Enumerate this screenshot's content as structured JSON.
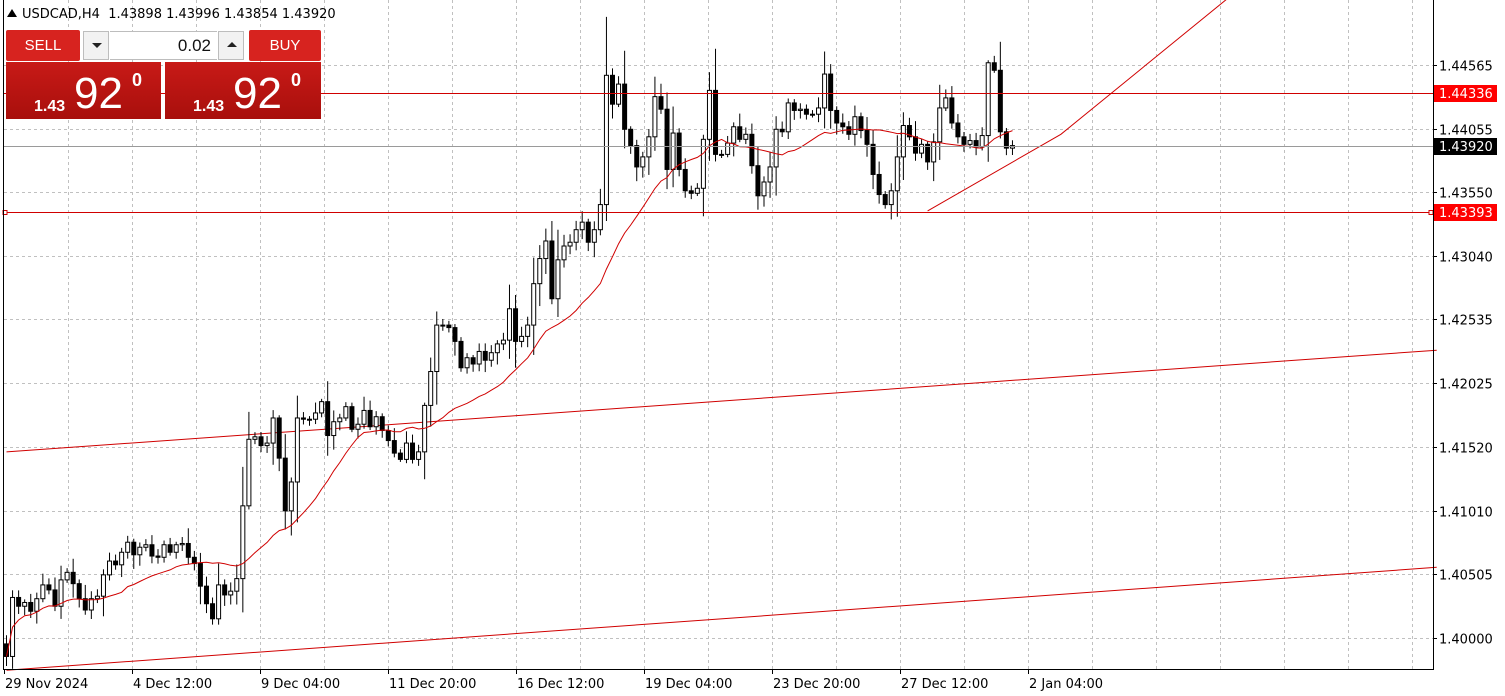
{
  "chart": {
    "title": "USDCAD,H4  1.43898 1.43996 1.43854 1.43920",
    "symbol": "USDCAD",
    "timeframe": "H4",
    "ohlc": {
      "open": 1.43898,
      "high": 1.43996,
      "low": 1.43854,
      "close": 1.4392
    },
    "background_color": "#ffffff",
    "grid_color": "#c0c0c0",
    "bull_candle_color": "#ffffff",
    "bear_candle_color": "#000000",
    "ma_color": "#d00000",
    "line_color": "#d00000",
    "current_price_label": "1.43920",
    "hline_labels": [
      "1.44336",
      "1.43393"
    ],
    "hline_label_color": "#ff0000",
    "price_axis_labels": [
      "1.44565",
      "1.44055",
      "1.43550",
      "1.43040",
      "1.42535",
      "1.42025",
      "1.41520",
      "1.41010",
      "1.40505",
      "1.40000"
    ],
    "time_axis_labels": [
      "29 Nov 2024",
      "4 Dec 12:00",
      "9 Dec 04:00",
      "11 Dec 20:00",
      "16 Dec 12:00",
      "19 Dec 04:00",
      "23 Dec 20:00",
      "27 Dec 12:00",
      "2 Jan 04:00"
    ]
  },
  "trade_panel": {
    "sell_label": "SELL",
    "buy_label": "BUY",
    "volume": "0.02",
    "sell_price_big": "1.43",
    "sell_price_pips": "92",
    "sell_price_point": "0",
    "buy_price_big": "1.43",
    "buy_price_pips": "92",
    "buy_price_point": "0",
    "color": "#d7231f"
  },
  "chart_data": {
    "type": "candlestick",
    "title": "USDCAD,H4  1.43898 1.43996 1.43854 1.43920",
    "ylim": [
      1.3975,
      1.4508
    ],
    "y_ticks": [
      1.44565,
      1.44055,
      1.4355,
      1.4304,
      1.42535,
      1.42025,
      1.4152,
      1.4101,
      1.40505,
      1.4
    ],
    "x_tick_labels": [
      "29 Nov 2024",
      "4 Dec 12:00",
      "9 Dec 04:00",
      "11 Dec 20:00",
      "16 Dec 12:00",
      "19 Dec 04:00",
      "23 Dec 20:00",
      "27 Dec 12:00",
      "2 Jan 04:00"
    ],
    "horizontal_lines": [
      1.44336,
      1.4392,
      1.43393
    ],
    "closes": [
      1.3985,
      1.4032,
      1.4025,
      1.4028,
      1.4021,
      1.4031,
      1.4042,
      1.4038,
      1.4025,
      1.4046,
      1.4052,
      1.4043,
      1.4031,
      1.4022,
      1.4031,
      1.4033,
      1.405,
      1.4061,
      1.4058,
      1.4068,
      1.4076,
      1.4066,
      1.4072,
      1.4074,
      1.4065,
      1.4064,
      1.4074,
      1.4068,
      1.4074,
      1.4075,
      1.4064,
      1.4059,
      1.4041,
      1.4027,
      1.4015,
      1.4042,
      1.4034,
      1.4037,
      1.4047,
      1.4105,
      1.4158,
      1.416,
      1.4153,
      1.4155,
      1.4175,
      1.4143,
      1.4101,
      1.4124,
      1.4175,
      1.4174,
      1.4174,
      1.4179,
      1.4188,
      1.4161,
      1.4172,
      1.4175,
      1.4184,
      1.4166,
      1.417,
      1.4181,
      1.4168,
      1.4176,
      1.4165,
      1.4157,
      1.4147,
      1.4142,
      1.4155,
      1.4142,
      1.4148,
      1.4185,
      1.4212,
      1.4249,
      1.4249,
      1.4247,
      1.4236,
      1.4215,
      1.4223,
      1.4218,
      1.4228,
      1.4221,
      1.4227,
      1.4234,
      1.4237,
      1.4262,
      1.4236,
      1.424,
      1.4249,
      1.4282,
      1.4302,
      1.4316,
      1.427,
      1.4301,
      1.4312,
      1.4315,
      1.4325,
      1.4331,
      1.4315,
      1.4325,
      1.4345,
      1.4448,
      1.4425,
      1.4441,
      1.4405,
      1.4392,
      1.4375,
      1.4383,
      1.4399,
      1.4431,
      1.4421,
      1.4373,
      1.4402,
      1.4373,
      1.4356,
      1.4354,
      1.4358,
      1.4397,
      1.4436,
      1.4385,
      1.4385,
      1.4394,
      1.4407,
      1.4397,
      1.4401,
      1.4376,
      1.4352,
      1.4363,
      1.4375,
      1.4405,
      1.4403,
      1.4426,
      1.442,
      1.4421,
      1.4417,
      1.4417,
      1.4422,
      1.4449,
      1.442,
      1.441,
      1.4407,
      1.4401,
      1.4415,
      1.4404,
      1.4393,
      1.4369,
      1.4353,
      1.4345,
      1.4356,
      1.4383,
      1.4408,
      1.4399,
      1.4386,
      1.4393,
      1.4379,
      1.4395,
      1.4422,
      1.443,
      1.441,
      1.4399,
      1.4393,
      1.4396,
      1.4391,
      1.44,
      1.4458,
      1.4452,
      1.4403,
      1.439,
      1.4392
    ],
    "ma_period": 20,
    "trend_lines": [
      {
        "points": [
          [
            0,
            1.4148
          ],
          [
            236,
            1.4229
          ]
        ]
      },
      {
        "points": [
          [
            0,
            1.3974
          ],
          [
            236,
            1.4056
          ]
        ]
      },
      {
        "points": [
          [
            152,
            1.434
          ],
          [
            174,
            1.4401
          ],
          [
            205,
            1.4523
          ]
        ]
      }
    ]
  }
}
